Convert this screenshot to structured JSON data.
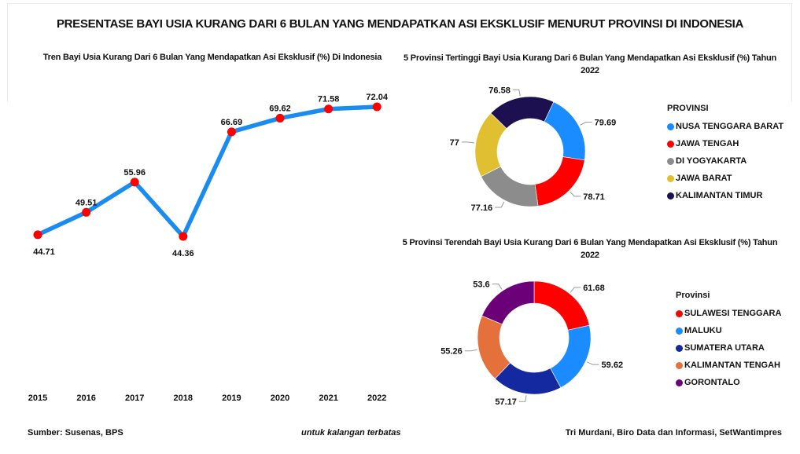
{
  "header": {
    "title": "PRESENTASE BAYI USIA KURANG DARI 6 BULAN YANG MENDAPATKAN ASI EKSKLUSIF MENURUT PROVINSI DI INDONESIA"
  },
  "chart_data": [
    {
      "type": "line",
      "title": "Tren Bayi Usia Kurang Dari 6 Bulan Yang Mendapatkan Asi Eksklusif (%) Di Indonesia",
      "categories": [
        "2015",
        "2016",
        "2017",
        "2018",
        "2019",
        "2020",
        "2021",
        "2022"
      ],
      "values": [
        44.71,
        49.51,
        55.96,
        44.36,
        66.69,
        69.62,
        71.58,
        72.04
      ],
      "labels": [
        "44.71",
        "49.51",
        "55.96",
        "44.36",
        "66.69",
        "69.62",
        "71.58",
        "72.04"
      ],
      "line_color": "#1a8cf0",
      "marker_color": "#ff0000",
      "xlabel": "",
      "ylabel": "",
      "ylim": [
        44.36,
        72.04
      ],
      "grid": false
    },
    {
      "type": "pie",
      "donut": true,
      "title": "5 Provinsi Tertinggi Bayi Usia Kurang Dari 6 Bulan Yang Mendapatkan Asi Eksklusif (%) Tahun 2022",
      "legend_title": "PROVINSI",
      "legend_position": "right",
      "categories": [
        "NUSA TENGGARA BARAT",
        "JAWA TENGAH",
        "DI YOGYAKARTA",
        "JAWA BARAT",
        "KALIMANTAN TIMUR"
      ],
      "values": [
        79.69,
        78.71,
        77.16,
        77,
        76.58
      ],
      "labels": [
        "79.69",
        "78.71",
        "77.16",
        "77",
        "76.58"
      ],
      "colors": [
        "#1a8cff",
        "#ff0000",
        "#8c8c8c",
        "#e0c030",
        "#1c1050"
      ]
    },
    {
      "type": "pie",
      "donut": true,
      "title": "5 Provinsi Terendah Bayi Usia Kurang Dari 6 Bulan Yang Mendapatkan Asi Eksklusif (%) Tahun 2022",
      "legend_title": "Provinsi",
      "legend_position": "right",
      "categories": [
        "SULAWESI TENGGARA",
        "MALUKU",
        "SUMATERA UTARA",
        "KALIMANTAN TENGAH",
        "GORONTALO"
      ],
      "values": [
        61.68,
        59.62,
        57.17,
        55.26,
        53.6
      ],
      "labels": [
        "61.68",
        "59.62",
        "57.17",
        "55.26",
        "53.6"
      ],
      "colors": [
        "#ff0000",
        "#1a8cff",
        "#1428a0",
        "#e4703c",
        "#6c0078"
      ]
    }
  ],
  "footer": {
    "source": "Sumber: Susenas, BPS",
    "note": "untuk kalangan terbatas",
    "credit": "Tri Murdani, Biro Data dan Informasi, SetWantimpres"
  }
}
